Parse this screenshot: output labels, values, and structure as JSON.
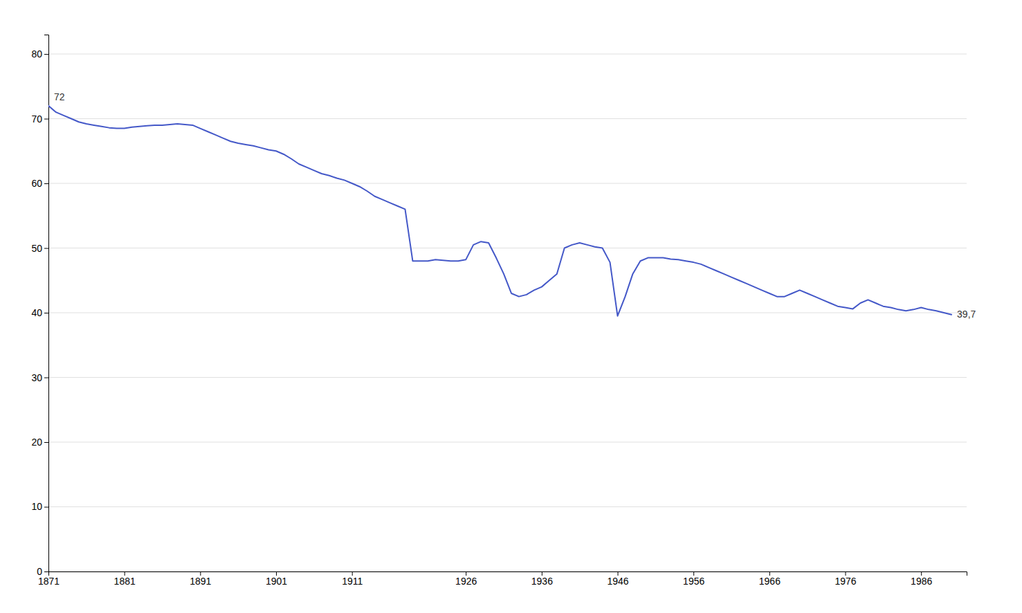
{
  "chart_data": {
    "type": "line",
    "x": [
      1871,
      1872,
      1873,
      1874,
      1875,
      1876,
      1877,
      1878,
      1879,
      1880,
      1881,
      1882,
      1883,
      1884,
      1885,
      1886,
      1887,
      1888,
      1889,
      1890,
      1891,
      1892,
      1893,
      1894,
      1895,
      1896,
      1897,
      1898,
      1899,
      1900,
      1901,
      1902,
      1903,
      1904,
      1905,
      1906,
      1907,
      1908,
      1909,
      1910,
      1911,
      1912,
      1913,
      1914,
      1915,
      1916,
      1917,
      1918,
      1919,
      1920,
      1921,
      1922,
      1923,
      1924,
      1925,
      1926,
      1927,
      1928,
      1929,
      1930,
      1931,
      1932,
      1933,
      1934,
      1935,
      1936,
      1937,
      1938,
      1939,
      1940,
      1941,
      1942,
      1943,
      1944,
      1945,
      1946,
      1947,
      1948,
      1949,
      1950,
      1951,
      1952,
      1953,
      1954,
      1955,
      1956,
      1957,
      1958,
      1959,
      1960,
      1961,
      1962,
      1963,
      1964,
      1965,
      1966,
      1967,
      1968,
      1969,
      1970,
      1971,
      1972,
      1973,
      1974,
      1975,
      1976,
      1977,
      1978,
      1979,
      1980,
      1981,
      1982,
      1983,
      1984,
      1985,
      1986,
      1987,
      1988,
      1989,
      1990
    ],
    "values": [
      72.0,
      71.0,
      70.5,
      70.0,
      69.5,
      69.2,
      69.0,
      68.8,
      68.6,
      68.5,
      68.5,
      68.7,
      68.8,
      68.9,
      69.0,
      69.0,
      69.1,
      69.2,
      69.1,
      69.0,
      68.5,
      68.0,
      67.5,
      67.0,
      66.5,
      66.2,
      66.0,
      65.8,
      65.5,
      65.2,
      65.0,
      64.5,
      63.8,
      63.0,
      62.5,
      62.0,
      61.5,
      61.2,
      60.8,
      60.5,
      60.0,
      59.5,
      58.8,
      58.0,
      57.5,
      57.0,
      56.5,
      56.0,
      48.0,
      48.0,
      48.0,
      48.2,
      48.1,
      48.0,
      48.0,
      48.2,
      50.5,
      51.0,
      50.8,
      48.5,
      46.0,
      43.0,
      42.5,
      42.8,
      43.5,
      44.0,
      45.0,
      46.0,
      50.0,
      50.5,
      50.8,
      50.5,
      50.2,
      50.0,
      47.8,
      39.5,
      42.5,
      46.0,
      48.0,
      48.5,
      48.5,
      48.5,
      48.3,
      48.2,
      48.0,
      47.8,
      47.5,
      47.0,
      46.5,
      46.0,
      45.5,
      45.0,
      44.5,
      44.0,
      43.5,
      43.0,
      42.5,
      42.5,
      43.0,
      43.5,
      43.0,
      42.5,
      42.0,
      41.5,
      41.0,
      40.8,
      40.6,
      41.5,
      42.0,
      41.5,
      41.0,
      40.8,
      40.5,
      40.3,
      40.5,
      40.8,
      40.5,
      40.3,
      40.0,
      39.7
    ],
    "color": "#4458c8",
    "xlim": [
      1871,
      1992
    ],
    "xticks": [
      1871,
      1881,
      1891,
      1901,
      1911,
      1926,
      1936,
      1946,
      1956,
      1966,
      1976,
      1986
    ],
    "ylim": [
      0,
      83
    ],
    "yticks": [
      0,
      10,
      20,
      30,
      40,
      50,
      60,
      70,
      80
    ],
    "grid": true,
    "annotations": [
      {
        "x": 1871,
        "y": 72,
        "text": "72"
      },
      {
        "x": 1990,
        "y": 39.7,
        "text": "39,7"
      }
    ]
  }
}
